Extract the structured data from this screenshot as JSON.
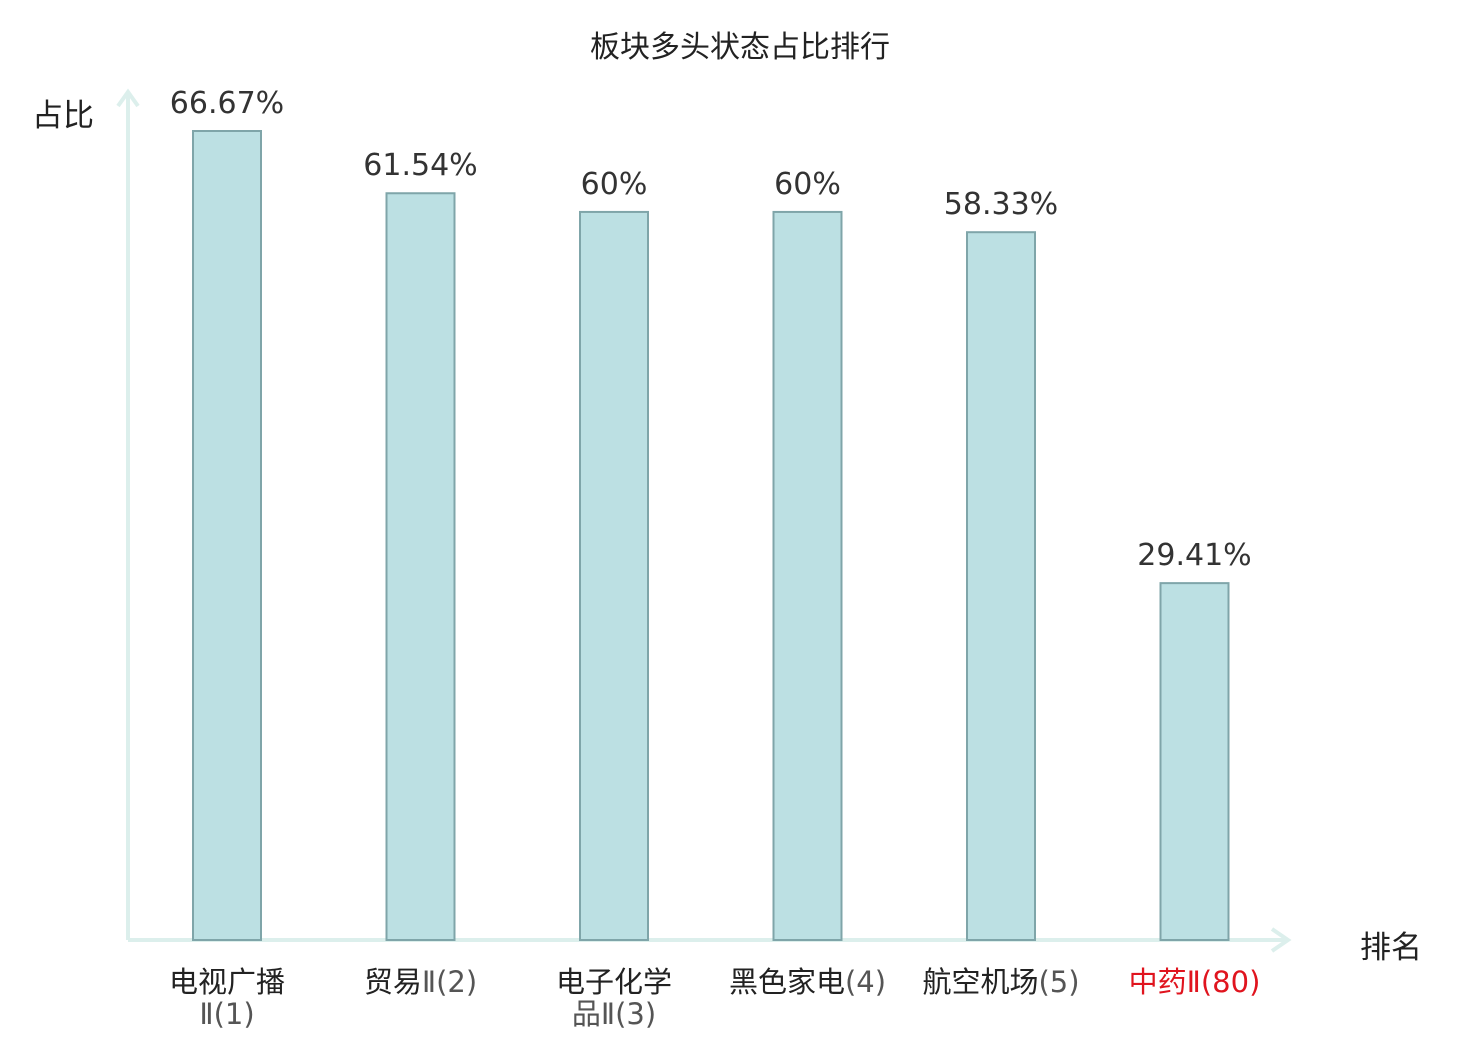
{
  "colors": {
    "bar_fill": "#bce0e3",
    "bar_stroke": "#7fa5a9",
    "axis": "#dcefec",
    "highlight": "#e0141e"
  },
  "chart_data": {
    "type": "bar",
    "title": "板块多头状态占比排行",
    "ylabel": "占比",
    "xlabel": "排名",
    "ylim": [
      0,
      70
    ],
    "grid": false,
    "categories": [
      {
        "name": "电视广播",
        "rank": "Ⅱ(1)",
        "highlight": false
      },
      {
        "name": "贸易",
        "rank": "Ⅱ(2)",
        "highlight": false
      },
      {
        "name": "电子化学",
        "rank": "品Ⅱ(3)",
        "highlight": false
      },
      {
        "name": "黑色家电",
        "rank": "(4)",
        "highlight": false
      },
      {
        "name": "航空机场",
        "rank": "(5)",
        "highlight": false
      },
      {
        "name": "中药",
        "rank": "Ⅱ(80)",
        "highlight": true
      }
    ],
    "values": [
      66.67,
      61.54,
      60,
      60,
      58.33,
      29.41
    ],
    "value_labels": [
      "66.67%",
      "61.54%",
      "60%",
      "60%",
      "58.33%",
      "29.41%"
    ]
  }
}
